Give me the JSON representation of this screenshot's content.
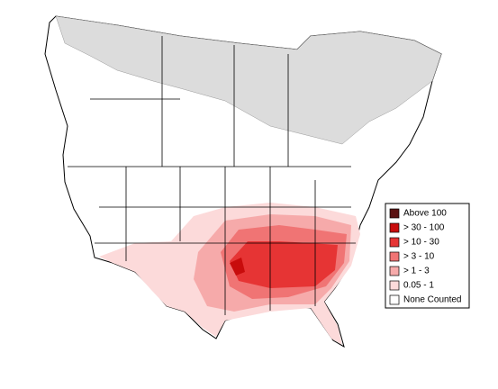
{
  "legend": {
    "items": [
      {
        "label": "Above 100",
        "color": "#5a1212"
      },
      {
        "label": "> 30 - 100",
        "color": "#c80c0c"
      },
      {
        "label": "> 10 - 30",
        "color": "#e63434"
      },
      {
        "label": "> 3 - 10",
        "color": "#f07474"
      },
      {
        "label": "> 1 - 3",
        "color": "#f6aaaa"
      },
      {
        "label": "0.05 - 1",
        "color": "#fcdada"
      },
      {
        "label": "None Counted",
        "color": "#ffffff"
      }
    ]
  }
}
